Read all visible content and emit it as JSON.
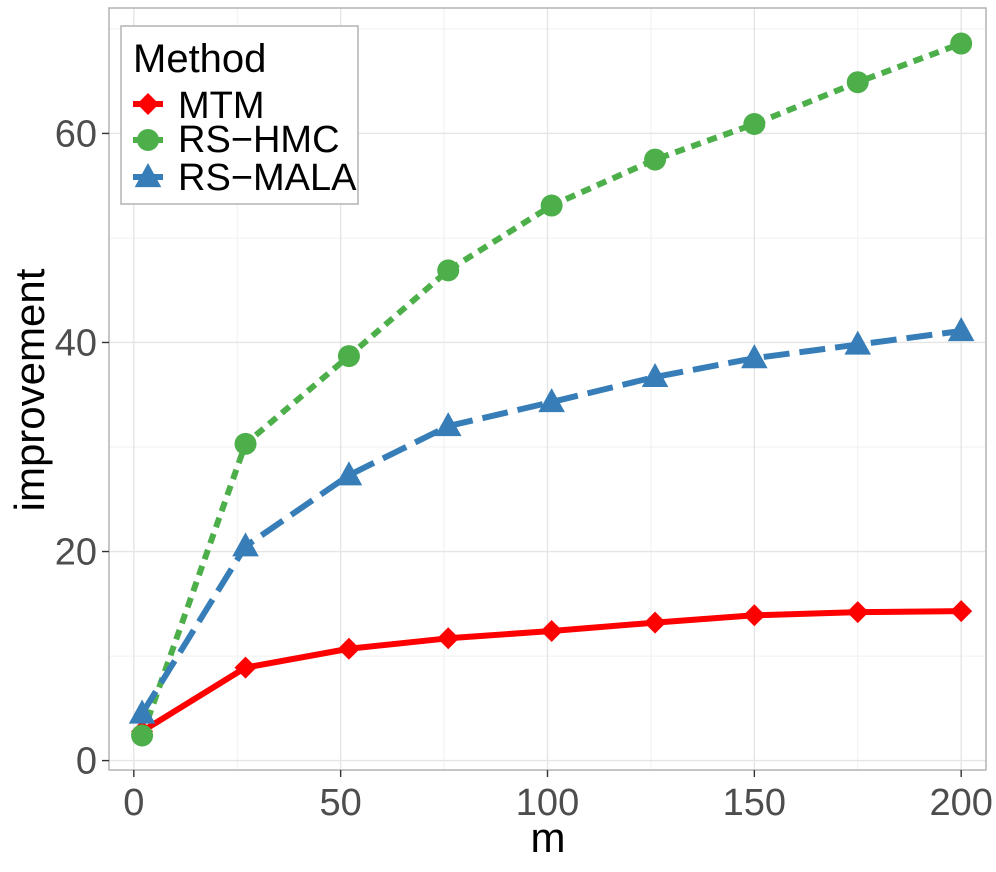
{
  "chart_data": {
    "type": "line",
    "title": "",
    "xlabel": "m",
    "ylabel": "improvement",
    "xlim": [
      -6,
      206
    ],
    "ylim": [
      -0.9,
      72
    ],
    "x_ticks": [
      0,
      50,
      100,
      150,
      200
    ],
    "y_ticks": [
      0,
      20,
      40,
      60
    ],
    "grid": true,
    "legend": {
      "title": "Method",
      "position": "top-left",
      "entries": [
        "MTM",
        "RS−HMC",
        "RS−MALA"
      ]
    },
    "x": [
      2,
      27,
      52,
      76,
      101,
      126,
      150,
      175,
      200
    ],
    "series": [
      {
        "name": "MTM",
        "color": "#ff0000",
        "line": "solid",
        "marker": "diamond",
        "values": [
          2.8,
          8.9,
          10.7,
          11.7,
          12.4,
          13.2,
          13.9,
          14.2,
          14.3
        ]
      },
      {
        "name": "RS−HMC",
        "color": "#4daf4a",
        "line": "dotted",
        "marker": "circle",
        "values": [
          2.4,
          30.3,
          38.7,
          46.9,
          53.1,
          57.5,
          60.9,
          64.9,
          68.6
        ]
      },
      {
        "name": "RS−MALA",
        "color": "#377eb8",
        "line": "dashed",
        "marker": "triangle",
        "values": [
          4.5,
          20.5,
          27.3,
          32.0,
          34.3,
          36.7,
          38.5,
          39.8,
          41.1
        ]
      }
    ]
  }
}
